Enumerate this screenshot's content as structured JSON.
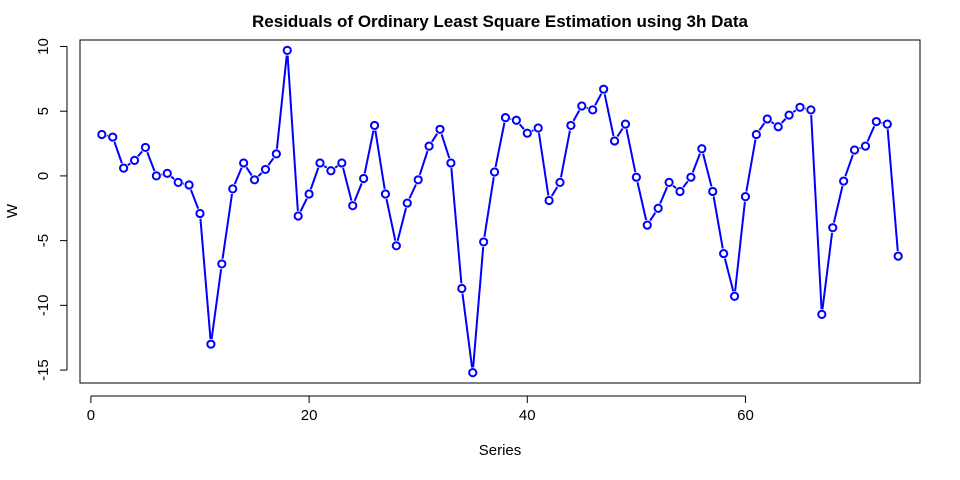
{
  "chart_data": {
    "type": "line",
    "title": "Residuals of Ordinary Least Square Estimation using 3h Data",
    "xlabel": "Series",
    "ylabel": "W",
    "xlim": [
      -1,
      76
    ],
    "ylim": [
      -16,
      10.5
    ],
    "xticks": [
      0,
      20,
      40,
      60
    ],
    "yticks": [
      -15,
      -10,
      -5,
      0,
      5,
      10
    ],
    "grid": false,
    "legend": "none",
    "series_color": "#0000ff",
    "point_fill": "#ffffff",
    "x": [
      1,
      2,
      3,
      4,
      5,
      6,
      7,
      8,
      9,
      10,
      11,
      12,
      13,
      14,
      15,
      16,
      17,
      18,
      19,
      20,
      21,
      22,
      23,
      24,
      25,
      26,
      27,
      28,
      29,
      30,
      31,
      32,
      33,
      34,
      35,
      36,
      37,
      38,
      39,
      40,
      41,
      42,
      43,
      44,
      45,
      46,
      47,
      48,
      49,
      50,
      51,
      52,
      53,
      54,
      55,
      56,
      57,
      58,
      59,
      60,
      61,
      62,
      63,
      64,
      65,
      66,
      67,
      68,
      69,
      70,
      71,
      72,
      73,
      74
    ],
    "y": [
      3.2,
      3.0,
      0.6,
      1.2,
      2.2,
      0.0,
      0.2,
      -0.5,
      -0.7,
      -2.9,
      -13.0,
      -6.8,
      -1.0,
      1.0,
      -0.3,
      0.5,
      1.7,
      9.7,
      -3.1,
      -1.4,
      1.0,
      0.4,
      1.0,
      -2.3,
      -0.2,
      3.9,
      -1.4,
      -5.4,
      -2.1,
      -0.3,
      2.3,
      3.6,
      1.0,
      -8.7,
      -15.2,
      -5.1,
      0.3,
      4.5,
      4.3,
      3.3,
      3.7,
      -1.9,
      -0.5,
      3.9,
      5.4,
      5.1,
      6.7,
      2.7,
      4.0,
      -0.1,
      -3.8,
      -2.5,
      -0.5,
      -1.2,
      -0.1,
      2.1,
      -1.2,
      -6.0,
      -9.3,
      -1.6,
      3.2,
      4.4,
      3.8,
      4.7,
      5.3,
      5.1,
      -10.7,
      -4.0,
      -0.4,
      2.0,
      2.3,
      4.2,
      4.0,
      -6.2
    ]
  }
}
